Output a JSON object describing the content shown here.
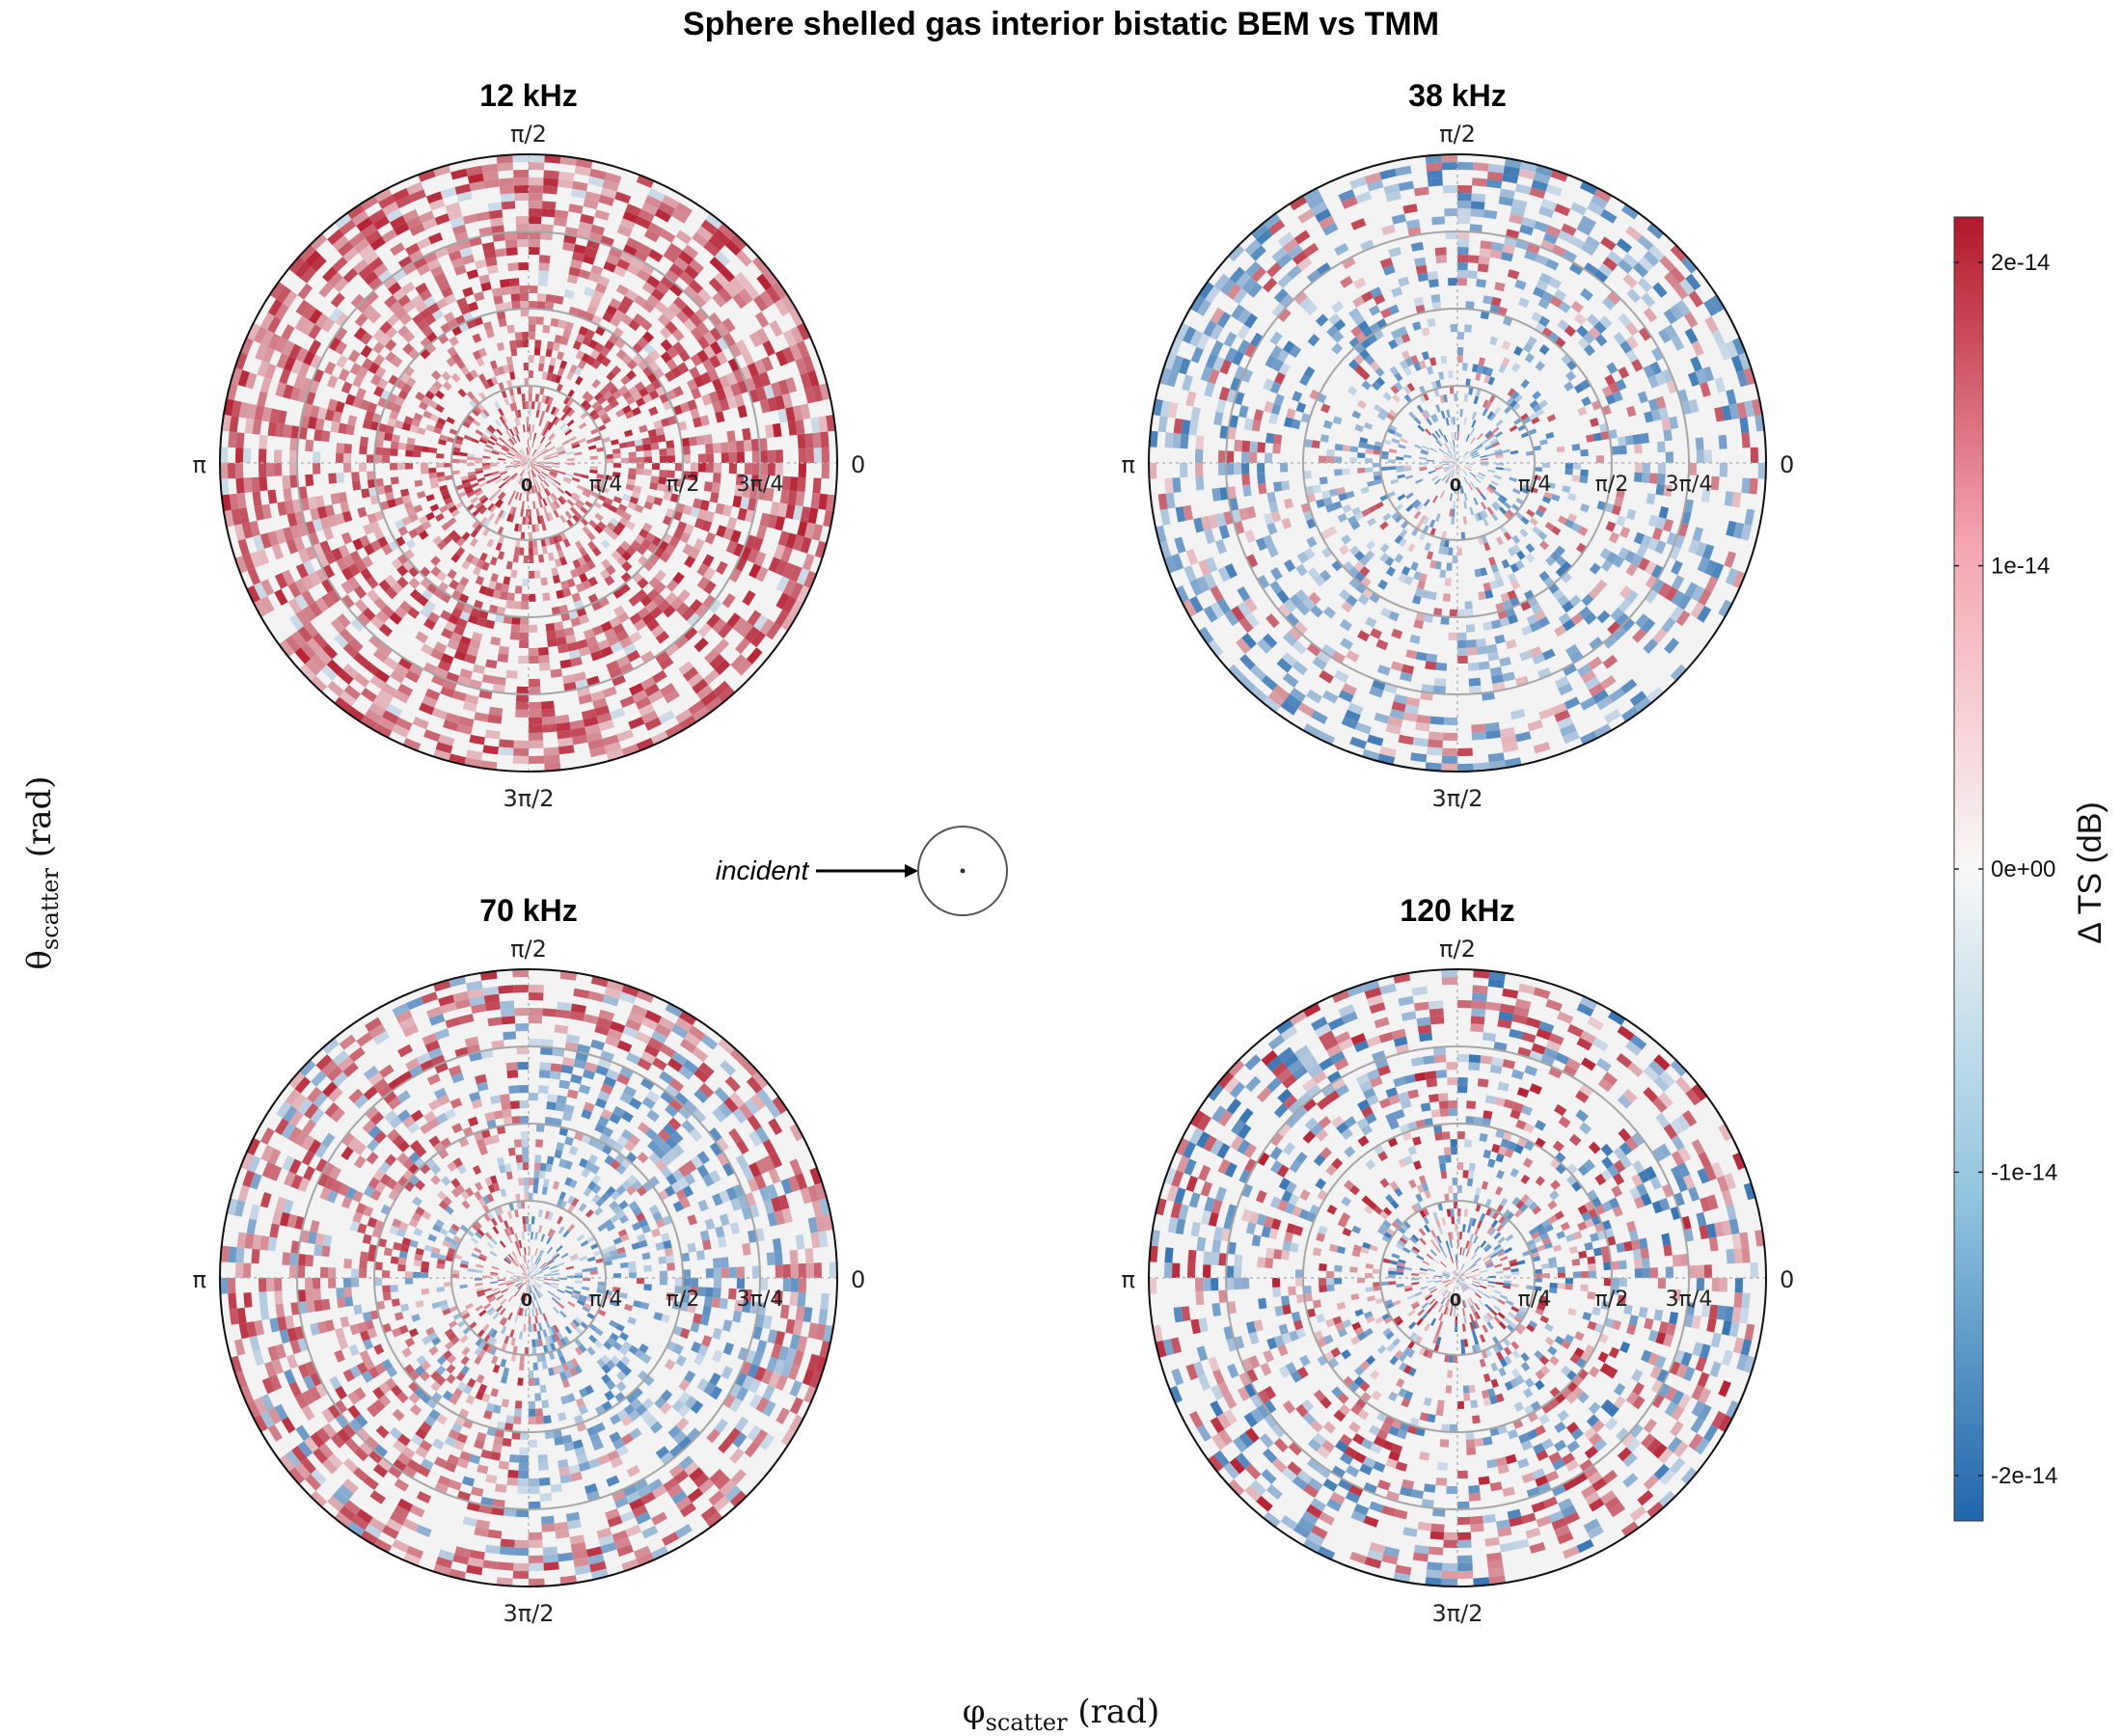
{
  "chart_data": {
    "type": "heatmap",
    "projection": "polar",
    "title": "Sphere shelled gas interior bistatic BEM vs TMM",
    "xlabel": {
      "main": "φ",
      "sub": "scatter",
      "unit": " (rad)"
    },
    "ylabel": {
      "main": "θ",
      "sub": "scatter",
      "unit": " (rad)"
    },
    "angular_ticks": [
      "0",
      "π/2",
      "π",
      "3π/2"
    ],
    "radial_ticks": [
      "0",
      "π/4",
      "π/2",
      "3π/4"
    ],
    "radial_range": [
      0,
      3.14159
    ],
    "incident_label": "incident",
    "colorbar": {
      "title": "Δ TS (dB)",
      "range": [
        -2.15e-14,
        2.15e-14
      ],
      "ticks": [
        {
          "value": 2e-14,
          "label": "2e-14"
        },
        {
          "value": 1e-14,
          "label": "1e-14"
        },
        {
          "value": 0,
          "label": "0e+00"
        },
        {
          "value": -1e-14,
          "label": "-1e-14"
        },
        {
          "value": -2e-14,
          "label": "-2e-14"
        }
      ],
      "colors": {
        "low": "#2166ac",
        "mid": "#f7f7f7",
        "high": "#b2182b"
      }
    },
    "panels": [
      {
        "label": "12 kHz",
        "bias": 0.85,
        "density": 0.55,
        "pattern": "positive"
      },
      {
        "label": "38 kHz",
        "bias": -0.45,
        "density": 0.35,
        "pattern": "mixed-negative"
      },
      {
        "label": "70 kHz",
        "bias": 0.0,
        "density": 0.45,
        "pattern": "split"
      },
      {
        "label": "120 kHz",
        "bias": 0.0,
        "density": 0.38,
        "pattern": "mixed"
      }
    ]
  }
}
